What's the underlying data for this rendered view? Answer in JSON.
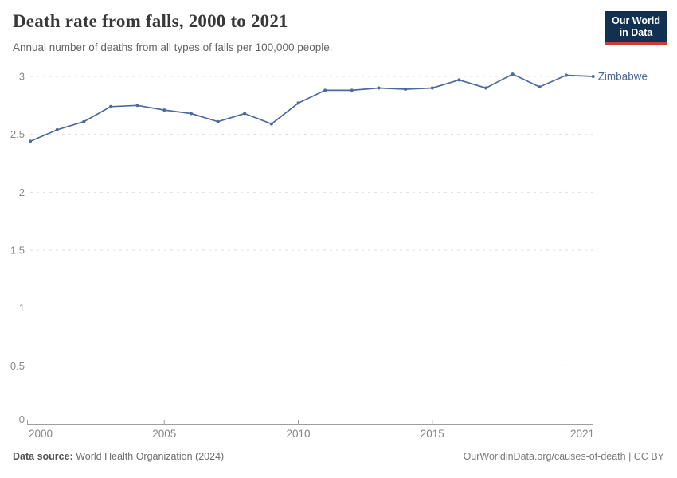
{
  "header": {
    "title": "Death rate from falls, 2000 to 2021",
    "subtitle": "Annual number of deaths from all types of falls per 100,000 people.",
    "logo": {
      "line1": "Our World",
      "line2": "in Data"
    }
  },
  "chart_data": {
    "type": "line",
    "title": "Death rate from falls, 2000 to 2021",
    "x": [
      2000,
      2001,
      2002,
      2003,
      2004,
      2005,
      2006,
      2007,
      2008,
      2009,
      2010,
      2011,
      2012,
      2013,
      2014,
      2015,
      2016,
      2017,
      2018,
      2019,
      2020,
      2021
    ],
    "series": [
      {
        "name": "Zimbabwe",
        "values": [
          2.44,
          2.54,
          2.61,
          2.74,
          2.75,
          2.71,
          2.68,
          2.61,
          2.68,
          2.59,
          2.77,
          2.88,
          2.88,
          2.9,
          2.89,
          2.9,
          2.97,
          2.9,
          3.02,
          2.91,
          3.01,
          3.0
        ],
        "color": "#4C6A9C"
      }
    ],
    "xlabel": "",
    "ylabel": "",
    "ylim": [
      0,
      3
    ],
    "yticks": [
      {
        "v": 0,
        "label": "0"
      },
      {
        "v": 0.5,
        "label": "0.5"
      },
      {
        "v": 1,
        "label": "1"
      },
      {
        "v": 1.5,
        "label": "1.5"
      },
      {
        "v": 2,
        "label": "2"
      },
      {
        "v": 2.5,
        "label": "2.5"
      },
      {
        "v": 3,
        "label": "3"
      }
    ],
    "xticks": [
      {
        "v": 2000,
        "label": "2000"
      },
      {
        "v": 2005,
        "label": "2005"
      },
      {
        "v": 2010,
        "label": "2010"
      },
      {
        "v": 2015,
        "label": "2015"
      },
      {
        "v": 2021,
        "label": "2021"
      }
    ],
    "grid": "horizontal-dashed",
    "legend_position": "end-of-line-label",
    "colors": {
      "line": "#4C6A9C",
      "grid": "#dedede",
      "axis": "#9e9e9e",
      "tick_text": "#878787",
      "entity_label": "#4C6A9C"
    }
  },
  "footer": {
    "datasource_label": "Data source:",
    "datasource_value": " World Health Organization (2024)",
    "credit": "OurWorldinData.org/causes-of-death | CC BY"
  }
}
